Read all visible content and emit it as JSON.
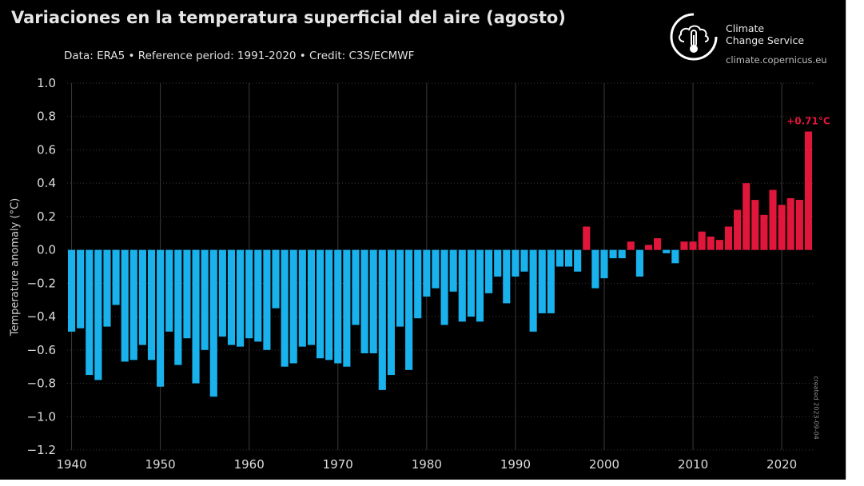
{
  "header": {
    "title": "Variaciones en la temperatura superficial del aire (agosto)",
    "subtitle": "Data: ERA5 • Reference period: 1991-2020 • Credit: C3S/ECMWF"
  },
  "branding": {
    "org_name_line1": "Climate",
    "org_name_line2": "Change Service",
    "url": "climate.copernicus.eu",
    "logo_icon": "copernicus-thermometer-icon"
  },
  "footer": {
    "created": "created 2023-09-04"
  },
  "colors": {
    "background": "#000000",
    "negative": "#1ab2ec",
    "positive": "#e0163a",
    "grid": "#3a3a3a",
    "text": "#e0e0e0"
  },
  "chart_data": {
    "type": "bar",
    "title": "Variaciones en la temperatura superficial del aire (agosto)",
    "ylabel": "Temperature anomaly (°C)",
    "xlabel": "",
    "ylim": [
      -1.2,
      1.0
    ],
    "xlim": [
      1939.5,
      2023.5
    ],
    "yticks": [
      1.0,
      0.8,
      0.6,
      0.4,
      0.2,
      0.0,
      -0.2,
      -0.4,
      -0.6,
      -0.8,
      -1.0,
      -1.2
    ],
    "ytick_labels": [
      "1.0",
      "0.8",
      "0.6",
      "0.4",
      "0.2",
      "0.0",
      "−0.2",
      "−0.4",
      "−0.6",
      "−0.8",
      "−1.0",
      "−1.2"
    ],
    "xticks": [
      1940,
      1950,
      1960,
      1970,
      1980,
      1990,
      2000,
      2010,
      2020
    ],
    "xtick_labels": [
      "1940",
      "1950",
      "1960",
      "1970",
      "1980",
      "1990",
      "2000",
      "2010",
      "2020"
    ],
    "grid": true,
    "annotation": {
      "year": 2023,
      "text": "+0.71°C"
    },
    "x": [
      1940,
      1941,
      1942,
      1943,
      1944,
      1945,
      1946,
      1947,
      1948,
      1949,
      1950,
      1951,
      1952,
      1953,
      1954,
      1955,
      1956,
      1957,
      1958,
      1959,
      1960,
      1961,
      1962,
      1963,
      1964,
      1965,
      1966,
      1967,
      1968,
      1969,
      1970,
      1971,
      1972,
      1973,
      1974,
      1975,
      1976,
      1977,
      1978,
      1979,
      1980,
      1981,
      1982,
      1983,
      1984,
      1985,
      1986,
      1987,
      1988,
      1989,
      1990,
      1991,
      1992,
      1993,
      1994,
      1995,
      1996,
      1997,
      1998,
      1999,
      2000,
      2001,
      2002,
      2003,
      2004,
      2005,
      2006,
      2007,
      2008,
      2009,
      2010,
      2011,
      2012,
      2013,
      2014,
      2015,
      2016,
      2017,
      2018,
      2019,
      2020,
      2021,
      2022,
      2023
    ],
    "values": [
      -0.49,
      -0.47,
      -0.75,
      -0.78,
      -0.46,
      -0.33,
      -0.67,
      -0.66,
      -0.57,
      -0.66,
      -0.82,
      -0.49,
      -0.69,
      -0.53,
      -0.8,
      -0.6,
      -0.88,
      -0.52,
      -0.57,
      -0.58,
      -0.53,
      -0.55,
      -0.6,
      -0.35,
      -0.7,
      -0.68,
      -0.58,
      -0.57,
      -0.65,
      -0.66,
      -0.68,
      -0.7,
      -0.45,
      -0.62,
      -0.62,
      -0.84,
      -0.75,
      -0.46,
      -0.72,
      -0.41,
      -0.28,
      -0.23,
      -0.45,
      -0.25,
      -0.43,
      -0.4,
      -0.43,
      -0.26,
      -0.16,
      -0.32,
      -0.16,
      -0.13,
      -0.49,
      -0.38,
      -0.38,
      -0.1,
      -0.1,
      -0.13,
      0.14,
      -0.23,
      -0.17,
      -0.05,
      -0.05,
      0.05,
      -0.16,
      0.03,
      0.07,
      -0.02,
      -0.08,
      0.05,
      0.05,
      0.11,
      0.08,
      0.06,
      0.14,
      0.24,
      0.4,
      0.3,
      0.21,
      0.36,
      0.27,
      0.31,
      0.3,
      0.71
    ]
  }
}
